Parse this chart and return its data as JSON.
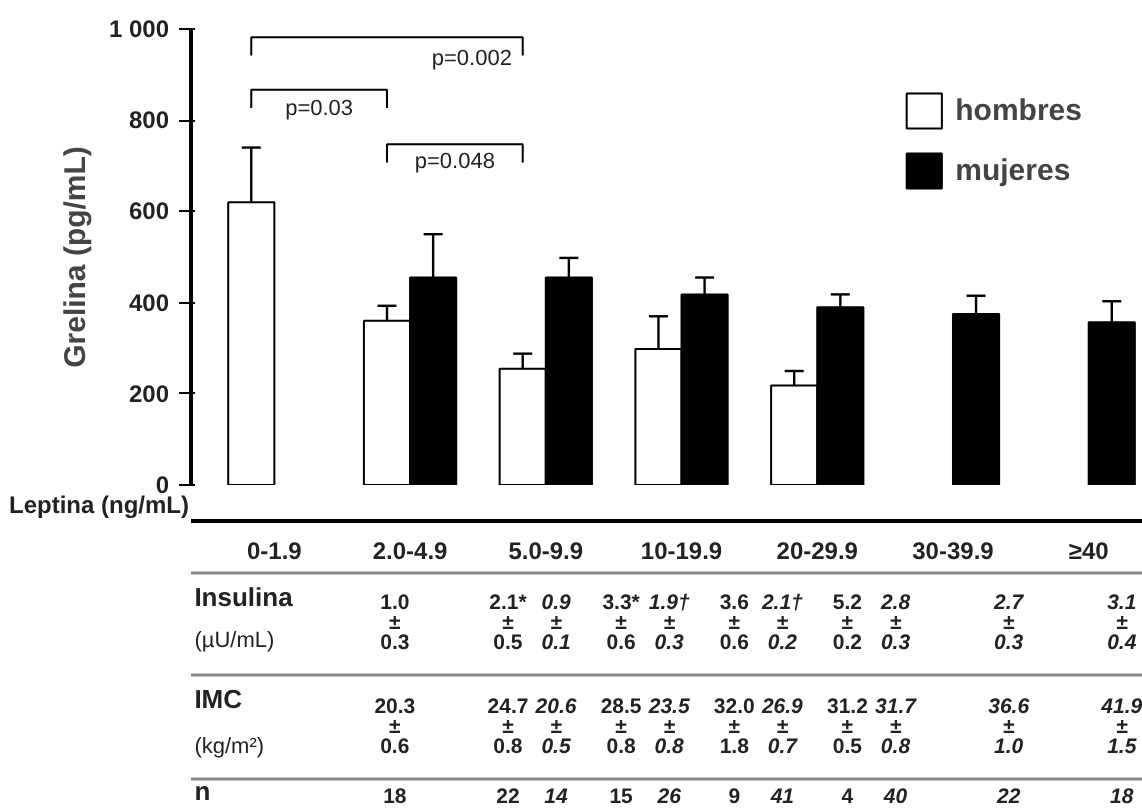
{
  "chart_data": {
    "type": "bar",
    "xlabel": "Leptina (ng/mL)",
    "ylabel": "Grelina (pg/mL)",
    "categories": [
      "0-1.9",
      "2.0-4.9",
      "5.0-9.9",
      "10-19.9",
      "20-29.9",
      "30-39.9",
      "≥40"
    ],
    "ylim": [
      0,
      1000
    ],
    "yticks": [
      0,
      200,
      400,
      600,
      800,
      {
        "value": 1000,
        "label": "1 000"
      }
    ],
    "legend": "top right",
    "series": [
      {
        "name": "hombres",
        "color": "#ffffff",
        "values": [
          620,
          360,
          255,
          298,
          218,
          null,
          null
        ],
        "errors": [
          [
            620,
            740
          ],
          [
            360,
            393
          ],
          [
            255,
            288
          ],
          [
            298,
            370
          ],
          [
            218,
            250
          ],
          null,
          null
        ]
      },
      {
        "name": "mujeres",
        "color": "#000000",
        "values": [
          null,
          455,
          455,
          418,
          390,
          375,
          357
        ],
        "errors": [
          null,
          [
            455,
            550
          ],
          [
            455,
            498
          ],
          [
            418,
            455
          ],
          [
            390,
            418
          ],
          [
            375,
            415
          ],
          [
            357,
            403
          ]
        ]
      }
    ],
    "annotations": [
      "p=0.002",
      "p=0.03",
      "p=0.048",
      "Insulina",
      "(µU/mL)",
      "IMC",
      "(kg/m²)",
      "n",
      "1.0\n±\n0.3",
      "2.1*\n±\n0.5",
      "0.9\n±\n0.1",
      "3.3*\n±\n0.6",
      "1.9†\n±\n0.3",
      "3.6\n±\n0.6",
      "2.1†\n±\n0.2",
      "5.2\n±\n0.2",
      "2.8\n±\n0.3",
      "2.7\n±\n0.3",
      "3.1\n±\n0.4",
      "20.3\n±\n0.6",
      "24.7\n±\n0.8",
      "20.6\n±\n0.5",
      "28.5\n±\n0.8",
      "23.5\n±\n0.8",
      "32.0\n±\n1.8",
      "26.9\n±\n0.7",
      "31.2\n±\n0.5",
      "31.7\n±\n0.8",
      "36.6\n±\n1.0",
      "41.9\n±\n1.5",
      "18",
      "22",
      "14",
      "15",
      "26",
      "9",
      "41",
      "4",
      "40",
      "22",
      "18"
    ]
  }
}
